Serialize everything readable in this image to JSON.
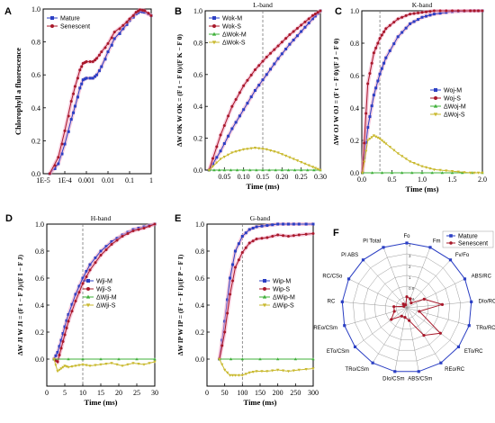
{
  "colors": {
    "mature": "#2b3fc4",
    "senescent": "#a8182a",
    "dm": "#3fb03a",
    "ds": "#c9b92e",
    "shade": "#f2a9c6"
  },
  "chart_data": [
    {
      "type": "line",
      "label": "A",
      "xlabel": "",
      "ylabel": "Chlorophyll a fluorescence",
      "xscale": "log",
      "xlim": [
        1e-05,
        1
      ],
      "ylim": [
        0,
        1
      ],
      "xticks": [
        "1E-5",
        "1E-4",
        "0.001",
        "0.01",
        "0.1",
        "1"
      ],
      "yticks": [
        "0.0",
        "0.2",
        "0.4",
        "0.6",
        "0.8",
        "1.0"
      ],
      "legend": {
        "position": "top-left"
      },
      "series": [
        {
          "name": "Mature",
          "x": [
            2e-05,
            5e-05,
            0.0001,
            0.0002,
            0.0003,
            0.0005,
            0.0007,
            0.001,
            0.002,
            0.003,
            0.005,
            0.01,
            0.02,
            0.05,
            0.1,
            0.2,
            0.3,
            0.5,
            1
          ],
          "y": [
            0.0,
            0.06,
            0.18,
            0.33,
            0.41,
            0.52,
            0.57,
            0.58,
            0.58,
            0.6,
            0.65,
            0.74,
            0.82,
            0.88,
            0.93,
            0.97,
            0.985,
            0.98,
            0.96
          ]
        },
        {
          "name": "Senescent",
          "x": [
            2e-05,
            5e-05,
            0.0001,
            0.0002,
            0.0003,
            0.0005,
            0.0007,
            0.001,
            0.002,
            0.003,
            0.005,
            0.01,
            0.02,
            0.05,
            0.1,
            0.2,
            0.3,
            0.5,
            1
          ],
          "y": [
            0.0,
            0.1,
            0.26,
            0.44,
            0.53,
            0.63,
            0.67,
            0.68,
            0.68,
            0.7,
            0.74,
            0.79,
            0.86,
            0.9,
            0.94,
            0.98,
            0.995,
            0.99,
            0.96
          ]
        }
      ]
    },
    {
      "type": "line",
      "label": "B",
      "band": "L-band",
      "xlabel": "Time (ms)",
      "ylabel": "ΔW OK   W OK = (F t − F 0)/(F K − F 0)",
      "xlim": [
        0,
        0.3
      ],
      "ylim": [
        0,
        1
      ],
      "vline": 0.15,
      "xticks": [
        "0.05",
        "0.10",
        "0.15",
        "0.20",
        "0.25",
        "0.30"
      ],
      "xtickvals": [
        0.05,
        0.1,
        0.15,
        0.2,
        0.25,
        0.3
      ],
      "yticks": [
        "0.0",
        "0.2",
        "0.4",
        "0.6",
        "0.8",
        "1.0"
      ],
      "legend": {
        "position": "top-left"
      },
      "series": [
        {
          "name": "Wok-M",
          "x": [
            0.01,
            0.04,
            0.07,
            0.1,
            0.13,
            0.16,
            0.19,
            0.22,
            0.25,
            0.28,
            0.3
          ],
          "y": [
            0.0,
            0.12,
            0.26,
            0.38,
            0.5,
            0.6,
            0.7,
            0.79,
            0.87,
            0.95,
            1.0
          ]
        },
        {
          "name": "Wok-S",
          "x": [
            0.01,
            0.04,
            0.07,
            0.1,
            0.13,
            0.16,
            0.19,
            0.22,
            0.25,
            0.28,
            0.3
          ],
          "y": [
            0.0,
            0.22,
            0.4,
            0.53,
            0.63,
            0.71,
            0.78,
            0.85,
            0.91,
            0.97,
            1.0
          ]
        },
        {
          "name": "ΔWok-M",
          "x": [
            0.01,
            0.05,
            0.1,
            0.15,
            0.2,
            0.25,
            0.3
          ],
          "y": [
            0,
            0,
            0,
            0,
            0,
            0,
            0
          ]
        },
        {
          "name": "ΔWok-S",
          "x": [
            0.01,
            0.04,
            0.07,
            0.1,
            0.13,
            0.16,
            0.19,
            0.22,
            0.25,
            0.28,
            0.3
          ],
          "y": [
            0.0,
            0.07,
            0.11,
            0.13,
            0.14,
            0.13,
            0.11,
            0.08,
            0.05,
            0.02,
            0.0
          ]
        }
      ]
    },
    {
      "type": "line",
      "label": "C",
      "band": "K-band",
      "xlabel": "Time (ms)",
      "ylabel": "ΔW OJ   W OJ = (F t − F 0)/(F J − F 0)",
      "xlim": [
        0,
        2
      ],
      "ylim": [
        0,
        1
      ],
      "vline": 0.3,
      "xticks": [
        "0.0",
        "0.5",
        "1.0",
        "1.5",
        "2.0"
      ],
      "xtickvals": [
        0,
        0.5,
        1,
        1.5,
        2
      ],
      "yticks": [
        "0.0",
        "0.2",
        "0.4",
        "0.6",
        "0.8",
        "1.0"
      ],
      "legend": {
        "position": "center-right"
      },
      "series": [
        {
          "name": "Woj-M",
          "x": [
            0.01,
            0.1,
            0.2,
            0.3,
            0.4,
            0.6,
            0.8,
            1.0,
            1.2,
            1.5,
            1.8,
            2.0
          ],
          "y": [
            0.0,
            0.28,
            0.48,
            0.61,
            0.71,
            0.84,
            0.92,
            0.96,
            0.98,
            0.995,
            1.0,
            1.0
          ]
        },
        {
          "name": "Woj-S",
          "x": [
            0.01,
            0.1,
            0.2,
            0.3,
            0.4,
            0.6,
            0.8,
            1.0,
            1.2,
            1.5,
            1.8,
            2.0
          ],
          "y": [
            0.0,
            0.55,
            0.74,
            0.83,
            0.89,
            0.95,
            0.98,
            0.99,
            1.0,
            1.0,
            1.0,
            1.0
          ]
        },
        {
          "name": "ΔWoj-M",
          "x": [
            0.01,
            0.5,
            1.0,
            1.5,
            2.0
          ],
          "y": [
            0,
            0,
            0,
            0,
            0
          ]
        },
        {
          "name": "ΔWoj-S",
          "x": [
            0.01,
            0.1,
            0.2,
            0.3,
            0.4,
            0.6,
            0.8,
            1.0,
            1.2,
            1.5,
            1.8,
            2.0
          ],
          "y": [
            0.0,
            0.2,
            0.23,
            0.21,
            0.18,
            0.12,
            0.07,
            0.04,
            0.02,
            0.01,
            0.0,
            0.0
          ]
        }
      ]
    },
    {
      "type": "line",
      "label": "D",
      "band": "H-band",
      "xlabel": "Time (ms)",
      "ylabel": "ΔW JI   W JI = (F t − F J)/(F I − F J)",
      "xlim": [
        0,
        30
      ],
      "ylim": [
        -0.2,
        1
      ],
      "vline": 10,
      "xticks": [
        "0",
        "5",
        "10",
        "15",
        "20",
        "25",
        "30"
      ],
      "xtickvals": [
        0,
        5,
        10,
        15,
        20,
        25,
        30
      ],
      "yticks": [
        "0.0",
        "0.2",
        "0.4",
        "0.6",
        "0.8",
        "1.0"
      ],
      "legend": {
        "position": "center-right"
      },
      "series": [
        {
          "name": "Wji-M",
          "x": [
            2,
            3,
            4,
            5,
            6,
            8,
            10,
            12,
            15,
            18,
            21,
            24,
            27,
            30
          ],
          "y": [
            0.0,
            0.05,
            0.14,
            0.24,
            0.33,
            0.48,
            0.6,
            0.7,
            0.8,
            0.87,
            0.92,
            0.96,
            0.98,
            1.0
          ]
        },
        {
          "name": "Wji-S",
          "x": [
            2,
            3,
            4,
            5,
            6,
            8,
            10,
            12,
            15,
            18,
            21,
            24,
            27,
            30
          ],
          "y": [
            0.0,
            -0.02,
            0.08,
            0.18,
            0.28,
            0.43,
            0.56,
            0.66,
            0.77,
            0.85,
            0.91,
            0.95,
            0.97,
            1.0
          ]
        },
        {
          "name": "ΔWji-M",
          "x": [
            2,
            10,
            20,
            30
          ],
          "y": [
            0,
            0,
            0,
            0
          ]
        },
        {
          "name": "ΔWji-S",
          "x": [
            2,
            3,
            4,
            5,
            6,
            8,
            10,
            12,
            15,
            18,
            21,
            24,
            27,
            30
          ],
          "y": [
            0.0,
            -0.09,
            -0.07,
            -0.05,
            -0.06,
            -0.05,
            -0.04,
            -0.05,
            -0.04,
            -0.03,
            -0.05,
            -0.03,
            -0.04,
            -0.02
          ]
        }
      ]
    },
    {
      "type": "line",
      "label": "E",
      "band": "G-band",
      "xlabel": "Time (ms)",
      "ylabel": "ΔW IP   W IP = (F t − F I)/(F P − F I)",
      "xlim": [
        0,
        300
      ],
      "ylim": [
        -0.2,
        1
      ],
      "vline": 100,
      "xticks": [
        "0",
        "50",
        "100",
        "150",
        "200",
        "250",
        "300"
      ],
      "xtickvals": [
        0,
        50,
        100,
        150,
        200,
        250,
        300
      ],
      "yticks": [
        "0.0",
        "0.2",
        "0.4",
        "0.6",
        "0.8",
        "1.0"
      ],
      "legend": {
        "position": "center-right"
      },
      "series": [
        {
          "name": "Wip-M",
          "x": [
            35,
            50,
            65,
            80,
            100,
            120,
            140,
            170,
            200,
            230,
            260,
            300
          ],
          "y": [
            0.0,
            0.28,
            0.6,
            0.8,
            0.91,
            0.96,
            0.98,
            0.99,
            1.0,
            1.0,
            1.0,
            1.0
          ]
        },
        {
          "name": "Wip-S",
          "x": [
            35,
            50,
            65,
            80,
            100,
            120,
            140,
            170,
            200,
            230,
            260,
            300
          ],
          "y": [
            0.0,
            0.2,
            0.48,
            0.68,
            0.79,
            0.86,
            0.89,
            0.9,
            0.92,
            0.91,
            0.92,
            0.93
          ]
        },
        {
          "name": "ΔWip-M",
          "x": [
            35,
            100,
            200,
            300
          ],
          "y": [
            0,
            0,
            0,
            0
          ]
        },
        {
          "name": "ΔWip-S",
          "x": [
            35,
            50,
            65,
            80,
            100,
            120,
            140,
            170,
            200,
            230,
            260,
            300
          ],
          "y": [
            0.0,
            -0.08,
            -0.12,
            -0.12,
            -0.12,
            -0.1,
            -0.09,
            -0.09,
            -0.08,
            -0.09,
            -0.08,
            -0.07
          ]
        }
      ]
    },
    {
      "type": "radar",
      "label": "F",
      "axes": [
        "Fo",
        "Fm",
        "Fv/Fo",
        "ABS/RC",
        "DIo/RC",
        "TRo/RC",
        "ETo/RC",
        "REo/RC",
        "ABS/CSm",
        "DIo/CSm",
        "TRo/CSm",
        "ETo/CSm",
        "REo/CSm",
        "RC",
        "RC/CSo",
        "PI ABS",
        "PI Total"
      ],
      "rings": [
        "0.4",
        "0.8",
        "1",
        "2",
        "3",
        "4"
      ],
      "legend": {
        "position": "top-right"
      },
      "series": [
        {
          "name": "Mature",
          "values": [
            1,
            1,
            1,
            1,
            1,
            1,
            1,
            1,
            1,
            1,
            1,
            1,
            1,
            1,
            1,
            1,
            1
          ]
        },
        {
          "name": "Senescent",
          "values": [
            0.17,
            0.15,
            0.1,
            0.3,
            0.55,
            0.2,
            0.65,
            0.5,
            0.2,
            0.15,
            0.15,
            0.3,
            0.2,
            0.2,
            0.05,
            0.08,
            0.05
          ]
        }
      ]
    }
  ],
  "legendMarkers": {
    "mature": "square",
    "senescent": "circle",
    "dm": "triangle-up",
    "ds": "triangle-down"
  }
}
